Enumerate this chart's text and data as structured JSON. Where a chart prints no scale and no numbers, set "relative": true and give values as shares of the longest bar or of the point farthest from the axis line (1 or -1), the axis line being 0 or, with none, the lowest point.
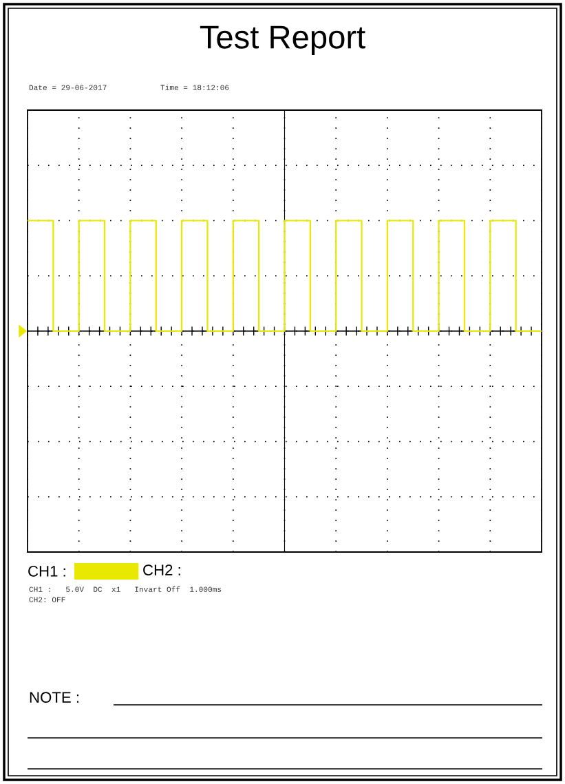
{
  "chart_data": {
    "type": "step",
    "title": "Test Report",
    "relative": true,
    "categories": [
      null,
      null,
      null,
      null,
      null,
      null,
      null,
      null,
      null,
      null,
      null,
      null,
      null,
      null,
      null,
      null,
      null,
      null,
      null,
      null,
      null
    ],
    "series": [
      {
        "name": "CH1 :",
        "color": "#e8e800",
        "values": [
          1,
          0,
          1,
          0,
          1,
          0,
          1,
          0,
          1,
          0,
          1,
          0,
          1,
          0,
          1,
          0,
          1,
          0,
          1,
          0,
          0
        ]
      }
    ],
    "annotations": [
      "Date = 29-06-2017",
      "Time = 18:12:06",
      "CH2 :",
      "CH1 :   5.0V  DC  x1   Invart Off  1.000ms",
      "CH2: OFF",
      "NOTE :"
    ],
    "grid": true,
    "legend": "bottom",
    "tick_labels": false,
    "line_style": "solid",
    "marker": "none"
  }
}
